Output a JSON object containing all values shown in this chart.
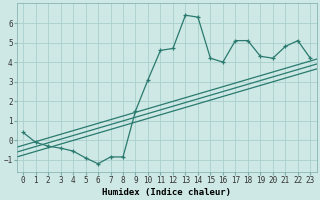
{
  "xlabel": "Humidex (Indice chaleur)",
  "bg_color": "#cde8e5",
  "grid_color": "#aacfcc",
  "line_color": "#2a7a6f",
  "x_data": [
    0,
    1,
    2,
    3,
    4,
    5,
    6,
    7,
    8,
    9,
    10,
    11,
    12,
    13,
    14,
    15,
    16,
    17,
    18,
    19,
    20,
    21,
    22,
    23
  ],
  "y_curve": [
    0.4,
    -0.1,
    -0.3,
    -0.4,
    -0.55,
    -0.9,
    -1.2,
    -0.85,
    -0.85,
    1.5,
    3.1,
    4.6,
    4.7,
    6.4,
    6.3,
    4.2,
    4.0,
    5.1,
    5.1,
    4.3,
    4.2,
    4.8,
    5.1,
    4.2
  ],
  "reg_lines": [
    [
      [
        -0.5,
        23.5
      ],
      [
        -0.35,
        4.15
      ]
    ],
    [
      [
        -0.5,
        23.5
      ],
      [
        -0.6,
        3.9
      ]
    ],
    [
      [
        -0.5,
        23.5
      ],
      [
        -0.85,
        3.65
      ]
    ]
  ],
  "xlim": [
    -0.5,
    23.5
  ],
  "ylim": [
    -1.6,
    7.0
  ],
  "yticks": [
    -1,
    0,
    1,
    2,
    3,
    4,
    5,
    6
  ],
  "xticks": [
    0,
    1,
    2,
    3,
    4,
    5,
    6,
    7,
    8,
    9,
    10,
    11,
    12,
    13,
    14,
    15,
    16,
    17,
    18,
    19,
    20,
    21,
    22,
    23
  ],
  "tick_fontsize": 5.5,
  "label_fontsize": 6.5
}
